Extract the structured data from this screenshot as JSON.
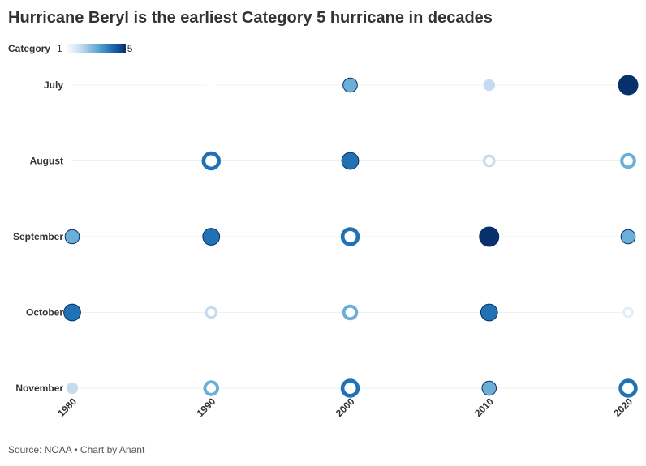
{
  "chart_data": {
    "type": "scatter",
    "title": "Hurricane Beryl is the earliest Category 5 hurricane in decades",
    "legend": {
      "title": "Category",
      "min": "1",
      "max": "5",
      "colors": [
        "#ffffff",
        "#c6dbef",
        "#6baed6",
        "#2171b5",
        "#08306b"
      ]
    },
    "x_categories": [
      "1980",
      "1990",
      "2000",
      "2010",
      "2020"
    ],
    "y_categories": [
      "July",
      "August",
      "September",
      "October",
      "November"
    ],
    "points": [
      {
        "x": "1990",
        "y": "July",
        "value": 1,
        "ring": false
      },
      {
        "x": "2000",
        "y": "July",
        "value": 3,
        "ring": false
      },
      {
        "x": "2010",
        "y": "July",
        "value": 2,
        "ring": false
      },
      {
        "x": "2020",
        "y": "July",
        "value": 5,
        "ring": false
      },
      {
        "x": "1990",
        "y": "August",
        "value": 4,
        "ring": true
      },
      {
        "x": "2000",
        "y": "August",
        "value": 4,
        "ring": false
      },
      {
        "x": "2010",
        "y": "August",
        "value": 2,
        "ring": true
      },
      {
        "x": "2020",
        "y": "August",
        "value": 3,
        "ring": true
      },
      {
        "x": "1980",
        "y": "September",
        "value": 3,
        "ring": false
      },
      {
        "x": "1990",
        "y": "September",
        "value": 4,
        "ring": false
      },
      {
        "x": "2000",
        "y": "September",
        "value": 4,
        "ring": true
      },
      {
        "x": "2010",
        "y": "September",
        "value": 5,
        "ring": false
      },
      {
        "x": "2020",
        "y": "September",
        "value": 3,
        "ring": false
      },
      {
        "x": "1980",
        "y": "October",
        "value": 4,
        "ring": false
      },
      {
        "x": "1990",
        "y": "October",
        "value": 2,
        "ring": true
      },
      {
        "x": "2000",
        "y": "October",
        "value": 3,
        "ring": true
      },
      {
        "x": "2010",
        "y": "October",
        "value": 4,
        "ring": false
      },
      {
        "x": "2020",
        "y": "October",
        "value": 1.5,
        "ring": true
      },
      {
        "x": "1980",
        "y": "November",
        "value": 2,
        "ring": false
      },
      {
        "x": "1990",
        "y": "November",
        "value": 3,
        "ring": true
      },
      {
        "x": "2000",
        "y": "November",
        "value": 4,
        "ring": true
      },
      {
        "x": "2010",
        "y": "November",
        "value": 3,
        "ring": false
      },
      {
        "x": "2020",
        "y": "November",
        "value": 4,
        "ring": true
      }
    ]
  },
  "source": "Source: NOAA • Chart by Anant"
}
